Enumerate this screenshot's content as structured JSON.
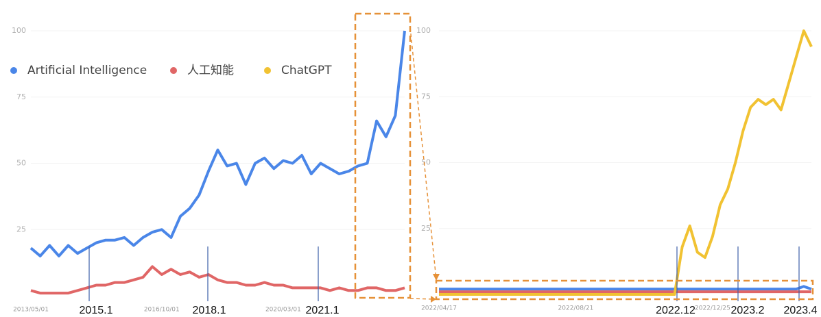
{
  "chart_data": [
    {
      "type": "line",
      "categories": [
        "2013/05/01",
        null,
        null,
        null,
        null,
        null,
        null,
        null,
        null,
        null,
        null,
        null,
        null,
        null,
        "2016/10/01",
        null,
        null,
        null,
        null,
        null,
        null,
        null,
        null,
        null,
        null,
        null,
        null,
        "2020/03/01",
        null,
        null,
        null,
        null,
        null,
        null,
        null,
        null,
        null,
        null,
        null,
        null,
        null
      ],
      "series": [
        {
          "name": "Artificial Intelligence",
          "color": "#4a86e8",
          "values": [
            18,
            15,
            19,
            15,
            19,
            16,
            18,
            20,
            21,
            21,
            22,
            19,
            22,
            24,
            25,
            22,
            30,
            33,
            38,
            47,
            55,
            49,
            50,
            42,
            50,
            52,
            48,
            51,
            50,
            53,
            46,
            50,
            48,
            46,
            47,
            49,
            50,
            66,
            60,
            68,
            100
          ]
        },
        {
          "name": "人工知能",
          "color": "#e06666",
          "values": [
            2,
            1,
            1,
            1,
            1,
            2,
            3,
            4,
            4,
            5,
            5,
            6,
            7,
            11,
            8,
            10,
            8,
            9,
            7,
            8,
            6,
            5,
            5,
            4,
            4,
            5,
            4,
            4,
            3,
            3,
            3,
            3,
            2,
            3,
            2,
            2,
            3,
            3,
            2,
            2,
            3
          ]
        }
      ],
      "ylim": [
        0,
        100
      ],
      "yticks": [
        25,
        50,
        75,
        100
      ],
      "grid": true,
      "annotations": [
        "2015.1",
        "2018.1",
        "2021.1"
      ]
    },
    {
      "type": "line",
      "categories": [
        "2022/04/17",
        null,
        null,
        null,
        null,
        null,
        null,
        null,
        null,
        null,
        null,
        null,
        null,
        null,
        null,
        null,
        null,
        null,
        "2022/08/21",
        null,
        null,
        null,
        null,
        null,
        null,
        null,
        null,
        null,
        null,
        null,
        null,
        null,
        null,
        null,
        null,
        null,
        "2022/12/25",
        null,
        null,
        null,
        null,
        null,
        null,
        null,
        null,
        null,
        null,
        null,
        null,
        null
      ],
      "series": [
        {
          "name": "Artificial Intelligence",
          "color": "#4a86e8",
          "values": [
            2,
            2,
            2,
            2,
            2,
            2,
            2,
            2,
            2,
            2,
            2,
            2,
            2,
            2,
            2,
            2,
            2,
            2,
            2,
            2,
            2,
            2,
            2,
            2,
            2,
            2,
            2,
            2,
            2,
            2,
            2,
            2,
            2,
            2,
            2,
            2,
            2,
            2,
            2,
            2,
            2,
            2,
            2,
            2,
            2,
            2,
            2,
            2,
            3,
            2
          ]
        },
        {
          "name": "人工知能",
          "color": "#e06666",
          "values": [
            1,
            1,
            1,
            1,
            1,
            1,
            1,
            1,
            1,
            1,
            1,
            1,
            1,
            1,
            1,
            1,
            1,
            1,
            1,
            1,
            1,
            1,
            1,
            1,
            1,
            1,
            1,
            1,
            1,
            1,
            1,
            1,
            1,
            1,
            1,
            1,
            1,
            1,
            1,
            1,
            1,
            1,
            1,
            1,
            1,
            1,
            1,
            1,
            1,
            1
          ]
        },
        {
          "name": "ChatGPT",
          "color": "#f1c232",
          "values": [
            0,
            0,
            0,
            0,
            0,
            0,
            0,
            0,
            0,
            0,
            0,
            0,
            0,
            0,
            0,
            0,
            0,
            0,
            0,
            0,
            0,
            0,
            0,
            0,
            0,
            0,
            0,
            0,
            0,
            0,
            0,
            0,
            18,
            26,
            16,
            14,
            22,
            34,
            40,
            50,
            62,
            71,
            74,
            72,
            74,
            70,
            80,
            90,
            100,
            94
          ]
        }
      ],
      "ylim": [
        0,
        100
      ],
      "yticks": [
        25,
        50,
        75,
        100
      ],
      "grid": true,
      "annotations": [
        "2022.12",
        "2023.2",
        "2023.4"
      ]
    }
  ]
}
